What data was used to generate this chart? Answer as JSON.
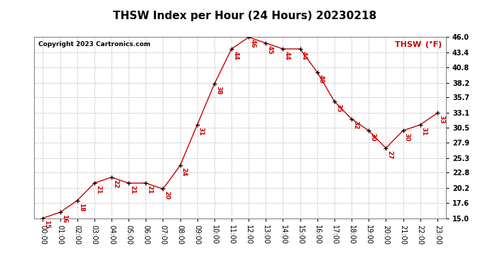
{
  "title": "THSW Index per Hour (24 Hours) 20230218",
  "copyright": "Copyright 2023 Cartronics.com",
  "legend_label": "THSW (°F)",
  "hours": [
    0,
    1,
    2,
    3,
    4,
    5,
    6,
    7,
    8,
    9,
    10,
    11,
    12,
    13,
    14,
    15,
    16,
    17,
    18,
    19,
    20,
    21,
    22,
    23
  ],
  "values": [
    15,
    16,
    18,
    21,
    22,
    21,
    21,
    20,
    24,
    31,
    38,
    44,
    46,
    45,
    44,
    44,
    40,
    35,
    32,
    30,
    27,
    30,
    31,
    33
  ],
  "hour_labels": [
    "00:00",
    "01:00",
    "02:00",
    "03:00",
    "04:00",
    "05:00",
    "06:00",
    "07:00",
    "08:00",
    "09:00",
    "10:00",
    "11:00",
    "12:00",
    "13:00",
    "14:00",
    "15:00",
    "16:00",
    "17:00",
    "18:00",
    "19:00",
    "20:00",
    "21:00",
    "22:00",
    "23:00"
  ],
  "ylim": [
    15.0,
    46.0
  ],
  "yticks": [
    15.0,
    17.6,
    20.2,
    22.8,
    25.3,
    27.9,
    30.5,
    33.1,
    35.7,
    38.2,
    40.8,
    43.4,
    46.0
  ],
  "line_color": "#cc0000",
  "marker_color": "#000000",
  "label_color": "#cc0000",
  "title_color": "#000000",
  "copyright_color": "#000000",
  "legend_color": "#cc0000",
  "bg_color": "#ffffff",
  "grid_color": "#bbbbbb",
  "title_fontsize": 11,
  "copyright_fontsize": 6.5,
  "label_fontsize": 6.5,
  "tick_fontsize": 7,
  "legend_fontsize": 8
}
